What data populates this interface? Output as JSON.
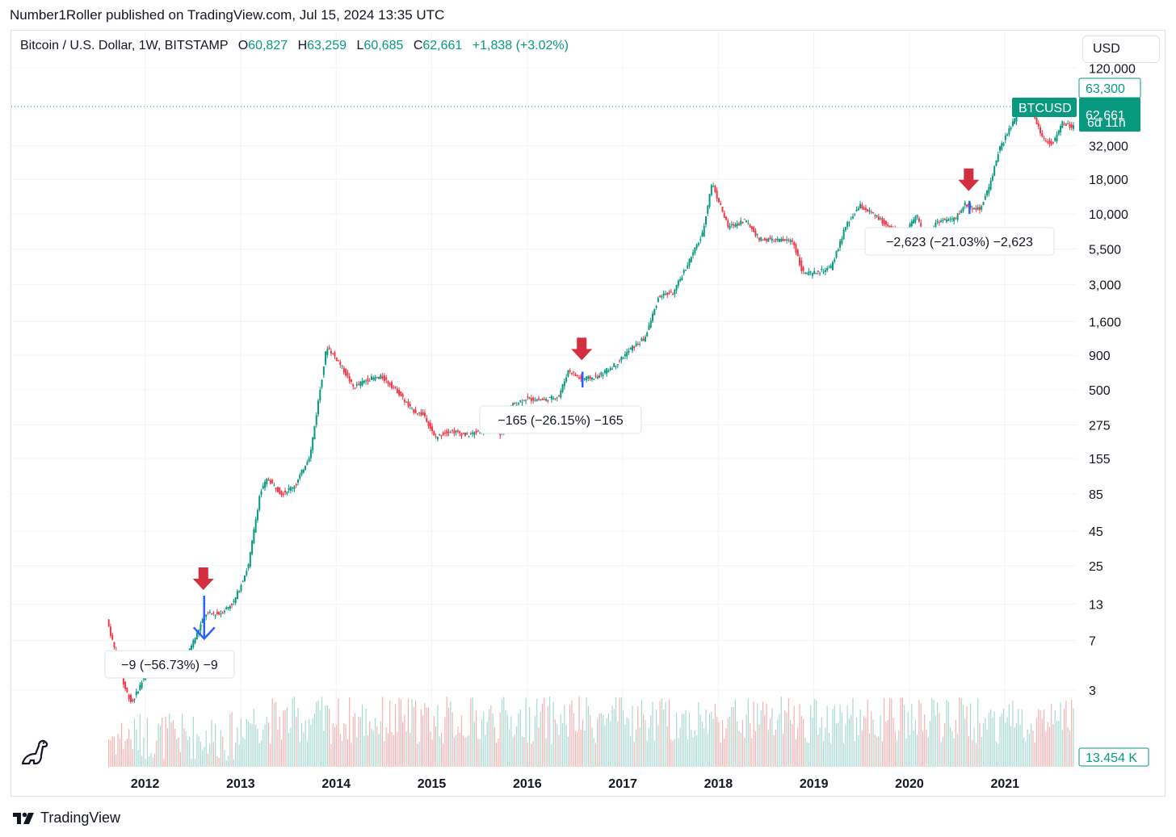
{
  "header": {
    "published_by": "Number1Roller published on TradingView.com, Jul 15, 2024 13:35 UTC"
  },
  "legend": {
    "symbol": "Bitcoin / U.S. Dollar, 1W, BITSTAMP",
    "o_label": "O",
    "o_value": "60,827",
    "h_label": "H",
    "h_value": "63,259",
    "l_label": "L",
    "l_value": "60,685",
    "c_label": "C",
    "c_value": "62,661",
    "change": "+1,838 (+3.02%)"
  },
  "currency_button": "USD",
  "price_tags": {
    "high_tag": "63,300",
    "symbol_tag": "BTCUSD",
    "last_price": "62,661",
    "countdown": "6d 11h",
    "volume_tag": "13.454 K"
  },
  "colors": {
    "up": "#089981",
    "down": "#f23645",
    "arrow_red": "#d32f3f",
    "measure_blue": "#2962ff",
    "grid": "#f0f3fa",
    "axis_text": "#131722"
  },
  "footer": {
    "brand": "TradingView",
    "logo_text": "17"
  },
  "icons": {
    "footer_logo": "tradingview-logo-icon",
    "dino": "dinosaur-icon",
    "arrow": "arrow-down-icon"
  },
  "chart_data": {
    "type": "candlestick",
    "title": "Bitcoin / U.S. Dollar, 1W, BITSTAMP",
    "y_scale": "log",
    "y_ticks": [
      "120,000",
      "32,000",
      "18,000",
      "10,000",
      "5,500",
      "3,000",
      "1,600",
      "900",
      "500",
      "275",
      "155",
      "85",
      "45",
      "25",
      "13",
      "7",
      "3"
    ],
    "y_tick_values": [
      120000,
      32000,
      18000,
      10000,
      5500,
      3000,
      1600,
      900,
      500,
      275,
      155,
      85,
      45,
      25,
      13,
      7,
      3
    ],
    "x_ticks": [
      "2012",
      "2013",
      "2014",
      "2015",
      "2016",
      "2017",
      "2018",
      "2019",
      "2020",
      "2021"
    ],
    "x_tick_years": [
      2012,
      2013,
      2014,
      2015,
      2016,
      2017,
      2018,
      2019,
      2020,
      2021
    ],
    "x_range_years": [
      2010.6,
      2021.75
    ],
    "price_path": [
      {
        "t": 2011.62,
        "p": 10
      },
      {
        "t": 2011.7,
        "p": 6
      },
      {
        "t": 2011.8,
        "p": 3.2
      },
      {
        "t": 2011.88,
        "p": 2.4
      },
      {
        "t": 2011.98,
        "p": 3.4
      },
      {
        "t": 2012.1,
        "p": 5
      },
      {
        "t": 2012.25,
        "p": 4.8
      },
      {
        "t": 2012.45,
        "p": 5.4
      },
      {
        "t": 2012.55,
        "p": 7.5
      },
      {
        "t": 2012.65,
        "p": 11
      },
      {
        "t": 2012.8,
        "p": 11
      },
      {
        "t": 2012.95,
        "p": 13.5
      },
      {
        "t": 2013.1,
        "p": 25
      },
      {
        "t": 2013.22,
        "p": 85
      },
      {
        "t": 2013.3,
        "p": 110
      },
      {
        "t": 2013.45,
        "p": 85
      },
      {
        "t": 2013.6,
        "p": 100
      },
      {
        "t": 2013.75,
        "p": 170
      },
      {
        "t": 2013.85,
        "p": 500
      },
      {
        "t": 2013.92,
        "p": 1050
      },
      {
        "t": 2014.05,
        "p": 800
      },
      {
        "t": 2014.2,
        "p": 520
      },
      {
        "t": 2014.35,
        "p": 600
      },
      {
        "t": 2014.5,
        "p": 620
      },
      {
        "t": 2014.65,
        "p": 500
      },
      {
        "t": 2014.8,
        "p": 360
      },
      {
        "t": 2014.95,
        "p": 320
      },
      {
        "t": 2015.05,
        "p": 220
      },
      {
        "t": 2015.2,
        "p": 250
      },
      {
        "t": 2015.4,
        "p": 230
      },
      {
        "t": 2015.6,
        "p": 260
      },
      {
        "t": 2015.75,
        "p": 235
      },
      {
        "t": 2015.85,
        "p": 380
      },
      {
        "t": 2016.0,
        "p": 430
      },
      {
        "t": 2016.2,
        "p": 420
      },
      {
        "t": 2016.35,
        "p": 450
      },
      {
        "t": 2016.45,
        "p": 700
      },
      {
        "t": 2016.58,
        "p": 600
      },
      {
        "t": 2016.75,
        "p": 620
      },
      {
        "t": 2016.95,
        "p": 780
      },
      {
        "t": 2017.1,
        "p": 1000
      },
      {
        "t": 2017.25,
        "p": 1200
      },
      {
        "t": 2017.4,
        "p": 2500
      },
      {
        "t": 2017.55,
        "p": 2600
      },
      {
        "t": 2017.7,
        "p": 4300
      },
      {
        "t": 2017.85,
        "p": 7000
      },
      {
        "t": 2017.95,
        "p": 17000
      },
      {
        "t": 2018.05,
        "p": 11000
      },
      {
        "t": 2018.12,
        "p": 8000
      },
      {
        "t": 2018.3,
        "p": 9000
      },
      {
        "t": 2018.45,
        "p": 6500
      },
      {
        "t": 2018.6,
        "p": 6400
      },
      {
        "t": 2018.8,
        "p": 6300
      },
      {
        "t": 2018.9,
        "p": 3700
      },
      {
        "t": 2019.0,
        "p": 3600
      },
      {
        "t": 2019.2,
        "p": 4000
      },
      {
        "t": 2019.35,
        "p": 8000
      },
      {
        "t": 2019.5,
        "p": 11500
      },
      {
        "t": 2019.65,
        "p": 9800
      },
      {
        "t": 2019.8,
        "p": 8000
      },
      {
        "t": 2019.95,
        "p": 7200
      },
      {
        "t": 2020.1,
        "p": 9500
      },
      {
        "t": 2020.2,
        "p": 6000
      },
      {
        "t": 2020.3,
        "p": 8800
      },
      {
        "t": 2020.5,
        "p": 9200
      },
      {
        "t": 2020.6,
        "p": 11800
      },
      {
        "t": 2020.75,
        "p": 10700
      },
      {
        "t": 2020.85,
        "p": 15500
      },
      {
        "t": 2020.95,
        "p": 29000
      },
      {
        "t": 2021.05,
        "p": 40000
      },
      {
        "t": 2021.15,
        "p": 55000
      },
      {
        "t": 2021.3,
        "p": 58000
      },
      {
        "t": 2021.42,
        "p": 36000
      },
      {
        "t": 2021.52,
        "p": 33000
      },
      {
        "t": 2021.62,
        "p": 47000
      },
      {
        "t": 2021.72,
        "p": 44000
      }
    ],
    "annotations": [
      {
        "label": "−9 (−56.73%) −9",
        "arrow_t": 2012.61,
        "arrow_p": 14,
        "measure_top_p": 15,
        "measure_bottom_p": 7.2
      },
      {
        "label": "−165 (−26.15%) −165",
        "arrow_t": 2016.57,
        "arrow_p": 700,
        "measure_top_p": 680,
        "measure_bottom_p": 520
      },
      {
        "label": "−2,623 (−21.03%) −2,623",
        "arrow_t": 2020.62,
        "arrow_p": 12500,
        "measure_top_p": 12500,
        "measure_bottom_p": 10000
      }
    ]
  }
}
